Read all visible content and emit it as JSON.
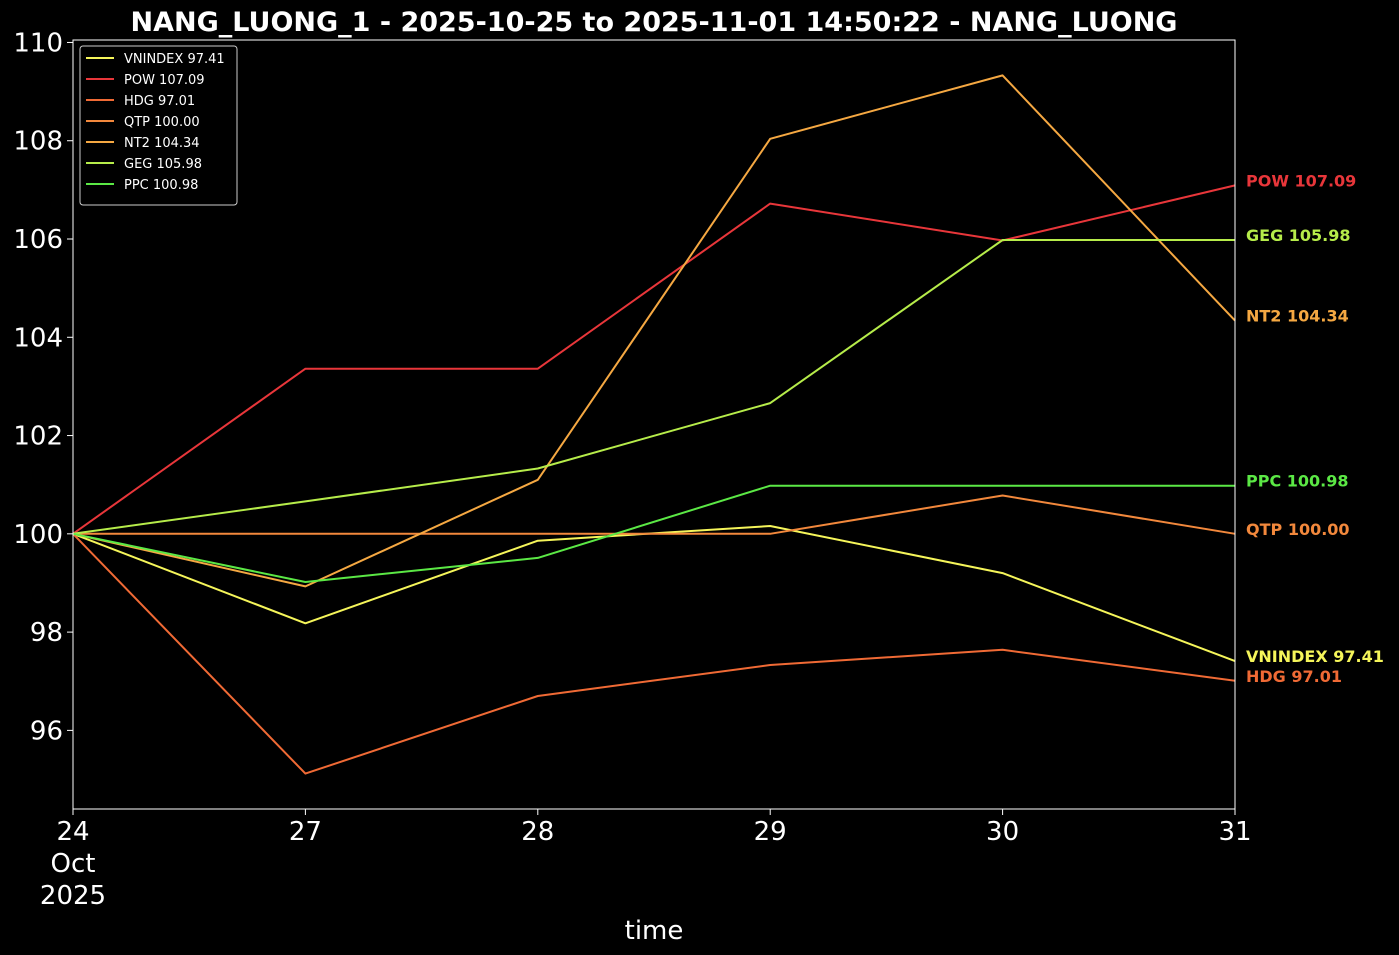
{
  "chart_data": {
    "type": "line",
    "title": "NANG_LUONG_1 - 2025-10-25 to 2025-11-01 14:50:22 - NANG_LUONG",
    "xlabel": "time",
    "ylabel": "",
    "x": [
      "24",
      "27",
      "28",
      "29",
      "30",
      "31"
    ],
    "x_tick_labels": [
      [
        "24",
        "Oct",
        "2025"
      ],
      [
        "27"
      ],
      [
        "28"
      ],
      [
        "29"
      ],
      [
        "30"
      ],
      [
        "31"
      ]
    ],
    "ylim": [
      94.4,
      110.05
    ],
    "y_ticks": [
      96,
      98,
      100,
      102,
      104,
      106,
      108,
      110
    ],
    "grid": false,
    "legend_placement": "top-left",
    "series": [
      {
        "name": "VNINDEX",
        "legend": "VNINDEX 97.41",
        "end_label": "VNINDEX 97.41",
        "color": "#f5f55a",
        "values": [
          100.0,
          98.18,
          99.86,
          100.16,
          99.2,
          97.41
        ]
      },
      {
        "name": "POW",
        "legend": "POW 107.09",
        "end_label": "POW 107.09",
        "color": "#e8363a",
        "values": [
          100.0,
          103.36,
          103.36,
          106.72,
          105.97,
          107.09
        ]
      },
      {
        "name": "HDG",
        "legend": "HDG 97.01",
        "end_label": "HDG 97.01",
        "color": "#f06a35",
        "values": [
          100.0,
          95.12,
          96.7,
          97.33,
          97.64,
          97.01
        ]
      },
      {
        "name": "QTP",
        "legend": "QTP 100.00",
        "end_label": "QTP 100.00",
        "color": "#f2883c",
        "values": [
          100.0,
          100.0,
          100.0,
          100.0,
          100.78,
          100.0
        ]
      },
      {
        "name": "NT2",
        "legend": "NT2 104.34",
        "end_label": "NT2 104.34",
        "color": "#f5a842",
        "values": [
          100.0,
          98.93,
          101.1,
          108.04,
          109.33,
          104.34
        ]
      },
      {
        "name": "GEG",
        "legend": "GEG 105.98",
        "end_label": "GEG 105.98",
        "color": "#b6ec4a",
        "values": [
          100.0,
          100.66,
          101.33,
          102.66,
          105.98,
          105.98
        ]
      },
      {
        "name": "PPC",
        "legend": "PPC 100.98",
        "end_label": "PPC 100.98",
        "color": "#5be845",
        "values": [
          100.0,
          99.02,
          99.51,
          100.98,
          100.98,
          100.98
        ]
      }
    ]
  }
}
